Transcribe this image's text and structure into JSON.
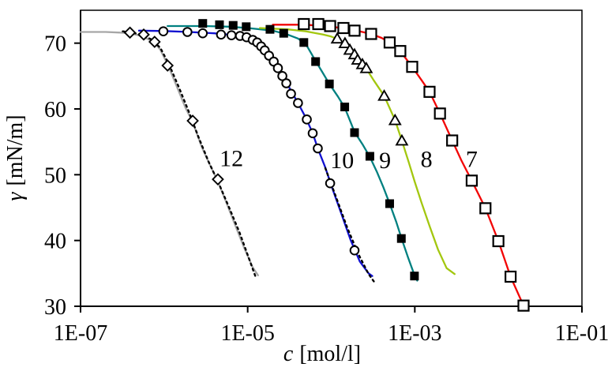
{
  "chart_data": {
    "type": "line",
    "title": "",
    "xlabel_symbol": "c",
    "xlabel_units": "[mol/l]",
    "ylabel_symbol": "γ",
    "ylabel_units": "[mN/m]",
    "x_scale": "log",
    "xlim": [
      1e-07,
      0.1
    ],
    "ylim": [
      30,
      75
    ],
    "grid": false,
    "legend": "inline-numeric-labels",
    "frame": true,
    "x_ticks": [
      {
        "v": 1e-07,
        "label": "1E-07"
      },
      {
        "v": 1e-05,
        "label": "1E-05"
      },
      {
        "v": 0.001,
        "label": "1E-03"
      },
      {
        "v": 0.1,
        "label": "1E-01"
      }
    ],
    "y_ticks": [
      {
        "v": 30,
        "label": "30"
      },
      {
        "v": 40,
        "label": "40"
      },
      {
        "v": 50,
        "label": "50"
      },
      {
        "v": 60,
        "label": "60"
      },
      {
        "v": 70,
        "label": "70"
      }
    ],
    "series": [
      {
        "name": "12",
        "marker": "diamond-open",
        "marker_color": "#000000",
        "line_color": "#a6a6a6",
        "fit_line_color": "#000000",
        "fit_line_style": "dotted",
        "points": [
          [
            3.9e-07,
            71.6
          ],
          [
            5.7e-07,
            71.3
          ],
          [
            7.7e-07,
            70.2
          ],
          [
            1.1e-06,
            66.6
          ],
          [
            2.2e-06,
            58.2
          ],
          [
            4.4e-06,
            49.3
          ]
        ],
        "curve": [
          [
            1e-07,
            71.7
          ],
          [
            2e-07,
            71.7
          ],
          [
            3e-07,
            71.6
          ],
          [
            3.9e-07,
            71.5
          ],
          [
            5e-07,
            71.2
          ],
          [
            6e-07,
            70.8
          ],
          [
            7.7e-07,
            70.1
          ],
          [
            9e-07,
            69.0
          ],
          [
            1.1e-06,
            66.8
          ],
          [
            1.4e-06,
            63.6
          ],
          [
            1.8e-06,
            60.2
          ],
          [
            2.2e-06,
            58.0
          ],
          [
            2.8e-06,
            54.3
          ],
          [
            3.5e-06,
            51.6
          ],
          [
            4.4e-06,
            49.0
          ],
          [
            5.5e-06,
            45.9
          ],
          [
            7e-06,
            42.5
          ],
          [
            9e-06,
            39.0
          ],
          [
            1.15e-05,
            35.9
          ],
          [
            1.33e-05,
            34.7
          ]
        ],
        "fit_curve": [
          [
            3.2e-07,
            71.8
          ],
          [
            5e-07,
            71.4
          ],
          [
            7e-07,
            70.6
          ],
          [
            9e-07,
            69.3
          ],
          [
            1.15e-06,
            66.7
          ],
          [
            1.5e-06,
            63.3
          ],
          [
            2e-06,
            59.4
          ],
          [
            2.6e-06,
            55.6
          ],
          [
            3.4e-06,
            52.0
          ],
          [
            4.5e-06,
            48.7
          ],
          [
            6e-06,
            45.0
          ],
          [
            8e-06,
            41.2
          ],
          [
            1e-05,
            37.8
          ],
          [
            1.25e-05,
            34.4
          ]
        ]
      },
      {
        "name": "10",
        "marker": "circle-open",
        "marker_color": "#000000",
        "line_color": "#1111d0",
        "fit_line_color": "#000000",
        "fit_line_style": "dotted",
        "points": [
          [
            9.8e-07,
            71.8
          ],
          [
            1.9e-06,
            71.7
          ],
          [
            2.9e-06,
            71.5
          ],
          [
            4.8e-06,
            71.3
          ],
          [
            6.4e-06,
            71.2
          ],
          [
            8.1e-06,
            71.1
          ],
          [
            9.7e-06,
            70.9
          ],
          [
            1.15e-05,
            70.5
          ],
          [
            1.3e-05,
            70.1
          ],
          [
            1.45e-05,
            69.5
          ],
          [
            1.6e-05,
            68.9
          ],
          [
            1.8e-05,
            68.1
          ],
          [
            2.05e-05,
            67.2
          ],
          [
            2.3e-05,
            66.2
          ],
          [
            2.6e-05,
            65.0
          ],
          [
            2.9e-05,
            63.9
          ],
          [
            3.3e-05,
            62.3
          ],
          [
            4e-05,
            60.9
          ],
          [
            5.1e-05,
            58.4
          ],
          [
            6e-05,
            56.3
          ],
          [
            6.9e-05,
            54.0
          ],
          [
            9.7e-05,
            48.7
          ],
          [
            0.00019,
            38.5
          ]
        ],
        "curve": [
          [
            5e-07,
            71.9
          ],
          [
            1e-06,
            71.85
          ],
          [
            2e-06,
            71.7
          ],
          [
            4e-06,
            71.5
          ],
          [
            7e-06,
            71.2
          ],
          [
            1e-05,
            70.8
          ],
          [
            1.3e-05,
            70.1
          ],
          [
            1.6e-05,
            68.9
          ],
          [
            2e-05,
            67.4
          ],
          [
            2.5e-05,
            65.5
          ],
          [
            3e-05,
            63.7
          ],
          [
            4e-05,
            60.9
          ],
          [
            5e-05,
            58.6
          ],
          [
            6e-05,
            56.3
          ],
          [
            7e-05,
            53.8
          ],
          [
            8.5e-05,
            51.1
          ],
          [
            0.0001,
            48.4
          ],
          [
            0.00013,
            44.3
          ],
          [
            0.00017,
            40.1
          ],
          [
            0.00022,
            36.8
          ],
          [
            0.00028,
            35.0
          ],
          [
            0.00031,
            34.6
          ]
        ],
        "fit_curve": [
          [
            8.5e-05,
            51.0
          ],
          [
            0.000115,
            46.5
          ],
          [
            0.000155,
            42.0
          ],
          [
            0.00021,
            38.0
          ],
          [
            0.00028,
            34.9
          ],
          [
            0.00034,
            33.4
          ]
        ]
      },
      {
        "name": "9",
        "marker": "square-filled",
        "marker_color": "#000000",
        "line_color": "#008080",
        "points": [
          [
            2.9e-06,
            73.0
          ],
          [
            4.6e-06,
            72.8
          ],
          [
            6.7e-06,
            72.7
          ],
          [
            9.6e-06,
            72.5
          ],
          [
            1.85e-05,
            72.1
          ],
          [
            2.7e-05,
            71.5
          ],
          [
            4.7e-05,
            70.1
          ],
          [
            6.5e-05,
            67.2
          ],
          [
            9.5e-05,
            63.8
          ],
          [
            0.000145,
            60.3
          ],
          [
            0.00019,
            56.4
          ],
          [
            0.00029,
            52.8
          ],
          [
            0.0005,
            45.6
          ],
          [
            0.00069,
            40.3
          ],
          [
            0.00099,
            34.6
          ]
        ],
        "curve": [
          [
            1.1e-06,
            72.6
          ],
          [
            3e-06,
            72.6
          ],
          [
            6e-06,
            72.5
          ],
          [
            1e-05,
            72.3
          ],
          [
            2e-05,
            71.9
          ],
          [
            3e-05,
            71.3
          ],
          [
            4e-05,
            70.7
          ],
          [
            5e-05,
            69.8
          ],
          [
            6.5e-05,
            67.3
          ],
          [
            8e-05,
            65.4
          ],
          [
            9.5e-05,
            63.8
          ],
          [
            0.00012,
            61.9
          ],
          [
            0.000145,
            60.2
          ],
          [
            0.00019,
            56.5
          ],
          [
            0.00024,
            54.5
          ],
          [
            0.00029,
            52.7
          ],
          [
            0.00035,
            50.5
          ],
          [
            0.00042,
            48.1
          ],
          [
            0.0005,
            45.6
          ],
          [
            0.0006,
            42.8
          ],
          [
            0.00069,
            40.4
          ],
          [
            0.00083,
            37.4
          ],
          [
            0.001,
            34.6
          ],
          [
            0.00107,
            33.9
          ]
        ]
      },
      {
        "name": "8",
        "marker": "triangle-open",
        "marker_color": "#000000",
        "line_color": "#a3c70f",
        "points": [
          [
            0.000118,
            70.7
          ],
          [
            0.000146,
            70.0
          ],
          [
            0.000167,
            69.0
          ],
          [
            0.00019,
            68.3
          ],
          [
            0.000207,
            67.5
          ],
          [
            0.000236,
            66.8
          ],
          [
            0.000263,
            66.2
          ],
          [
            0.00043,
            62.0
          ],
          [
            0.00058,
            58.3
          ],
          [
            0.0007,
            55.2
          ]
        ],
        "curve": [
          [
            1.4e-05,
            72.3
          ],
          [
            3e-05,
            72.1
          ],
          [
            5e-05,
            71.8
          ],
          [
            8e-05,
            71.3
          ],
          [
            0.0001,
            71.0
          ],
          [
            0.00012,
            70.6
          ],
          [
            0.000145,
            70.0
          ],
          [
            0.00017,
            69.0
          ],
          [
            0.00021,
            67.4
          ],
          [
            0.00026,
            66.2
          ],
          [
            0.00032,
            64.4
          ],
          [
            0.00043,
            62.0
          ],
          [
            0.00058,
            58.3
          ],
          [
            0.0007,
            55.2
          ],
          [
            0.00085,
            51.8
          ],
          [
            0.001,
            48.9
          ],
          [
            0.0012,
            45.8
          ],
          [
            0.0015,
            42.2
          ],
          [
            0.0019,
            38.6
          ],
          [
            0.0024,
            35.8
          ],
          [
            0.003,
            34.9
          ]
        ]
      },
      {
        "name": "7",
        "marker": "square-open",
        "marker_color": "#000000",
        "line_color": "#f20505",
        "points": [
          [
            4.7e-05,
            72.9
          ],
          [
            7e-05,
            72.9
          ],
          [
            9.7e-05,
            72.6
          ],
          [
            0.00014,
            72.3
          ],
          [
            0.00019,
            71.9
          ],
          [
            0.0003,
            71.4
          ],
          [
            0.0005,
            70.1
          ],
          [
            0.00067,
            68.8
          ],
          [
            0.00093,
            66.4
          ],
          [
            0.0015,
            62.6
          ],
          [
            0.002,
            59.3
          ],
          [
            0.0028,
            55.2
          ],
          [
            0.0048,
            49.1
          ],
          [
            0.007,
            44.9
          ],
          [
            0.01,
            39.9
          ],
          [
            0.014,
            34.5
          ],
          [
            0.02,
            30.1
          ]
        ],
        "curve": [
          [
            2e-05,
            72.8
          ],
          [
            5e-05,
            72.8
          ],
          [
            0.0001,
            72.5
          ],
          [
            0.00015,
            72.2
          ],
          [
            0.0002,
            71.9
          ],
          [
            0.0003,
            71.4
          ],
          [
            0.0004,
            70.8
          ],
          [
            0.0005,
            70.1
          ],
          [
            0.00067,
            68.8
          ],
          [
            0.00093,
            66.4
          ],
          [
            0.0012,
            64.4
          ],
          [
            0.0015,
            62.6
          ],
          [
            0.002,
            59.3
          ],
          [
            0.0028,
            55.2
          ],
          [
            0.0036,
            52.2
          ],
          [
            0.0048,
            49.1
          ],
          [
            0.007,
            44.9
          ],
          [
            0.01,
            39.9
          ],
          [
            0.014,
            34.5
          ],
          [
            0.02,
            30.1
          ]
        ]
      }
    ],
    "annotations": [
      {
        "text": "12",
        "c": 6.4e-06,
        "gamma": 52.5
      },
      {
        "text": "10",
        "c": 0.000135,
        "gamma": 52.2
      },
      {
        "text": "9",
        "c": 0.00044,
        "gamma": 52.2
      },
      {
        "text": "8",
        "c": 0.00138,
        "gamma": 52.4
      },
      {
        "text": "7",
        "c": 0.0048,
        "gamma": 52.4
      }
    ]
  }
}
